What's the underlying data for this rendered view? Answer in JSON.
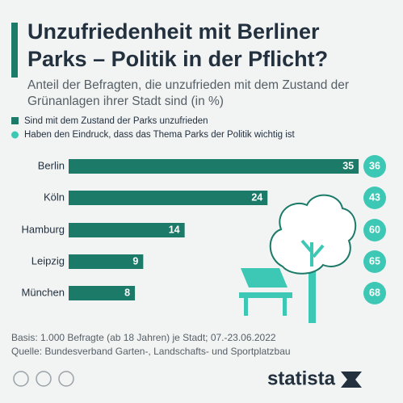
{
  "title": "Unzufriedenheit mit Berliner Parks – Politik in der Pflicht?",
  "subtitle": "Anteil der Befragten, die unzufrieden mit dem Zustand der Grünanlagen ihrer Stadt sind (in %)",
  "chart_data": {
    "type": "bar",
    "categories": [
      "Berlin",
      "Köln",
      "Hamburg",
      "Leipzig",
      "München"
    ],
    "series": [
      {
        "name": "Sind mit dem Zustand der Parks unzufrieden",
        "color": "#1b7a68",
        "values": [
          35,
          24,
          14,
          9,
          8
        ]
      },
      {
        "name": "Haben den Eindruck, dass das Thema Parks der Politik wichtig ist",
        "color": "#3cc8b4",
        "values": [
          36,
          43,
          60,
          65,
          68
        ]
      }
    ]
  },
  "footer": {
    "basis": "Basis: 1.000 Befragte (ab 18 Jahren) je Stadt; 07.-23.06.2022",
    "source": "Quelle: Bundesverband Garten-, Landschafts- und Sportplatzbau",
    "logo": "statista"
  }
}
